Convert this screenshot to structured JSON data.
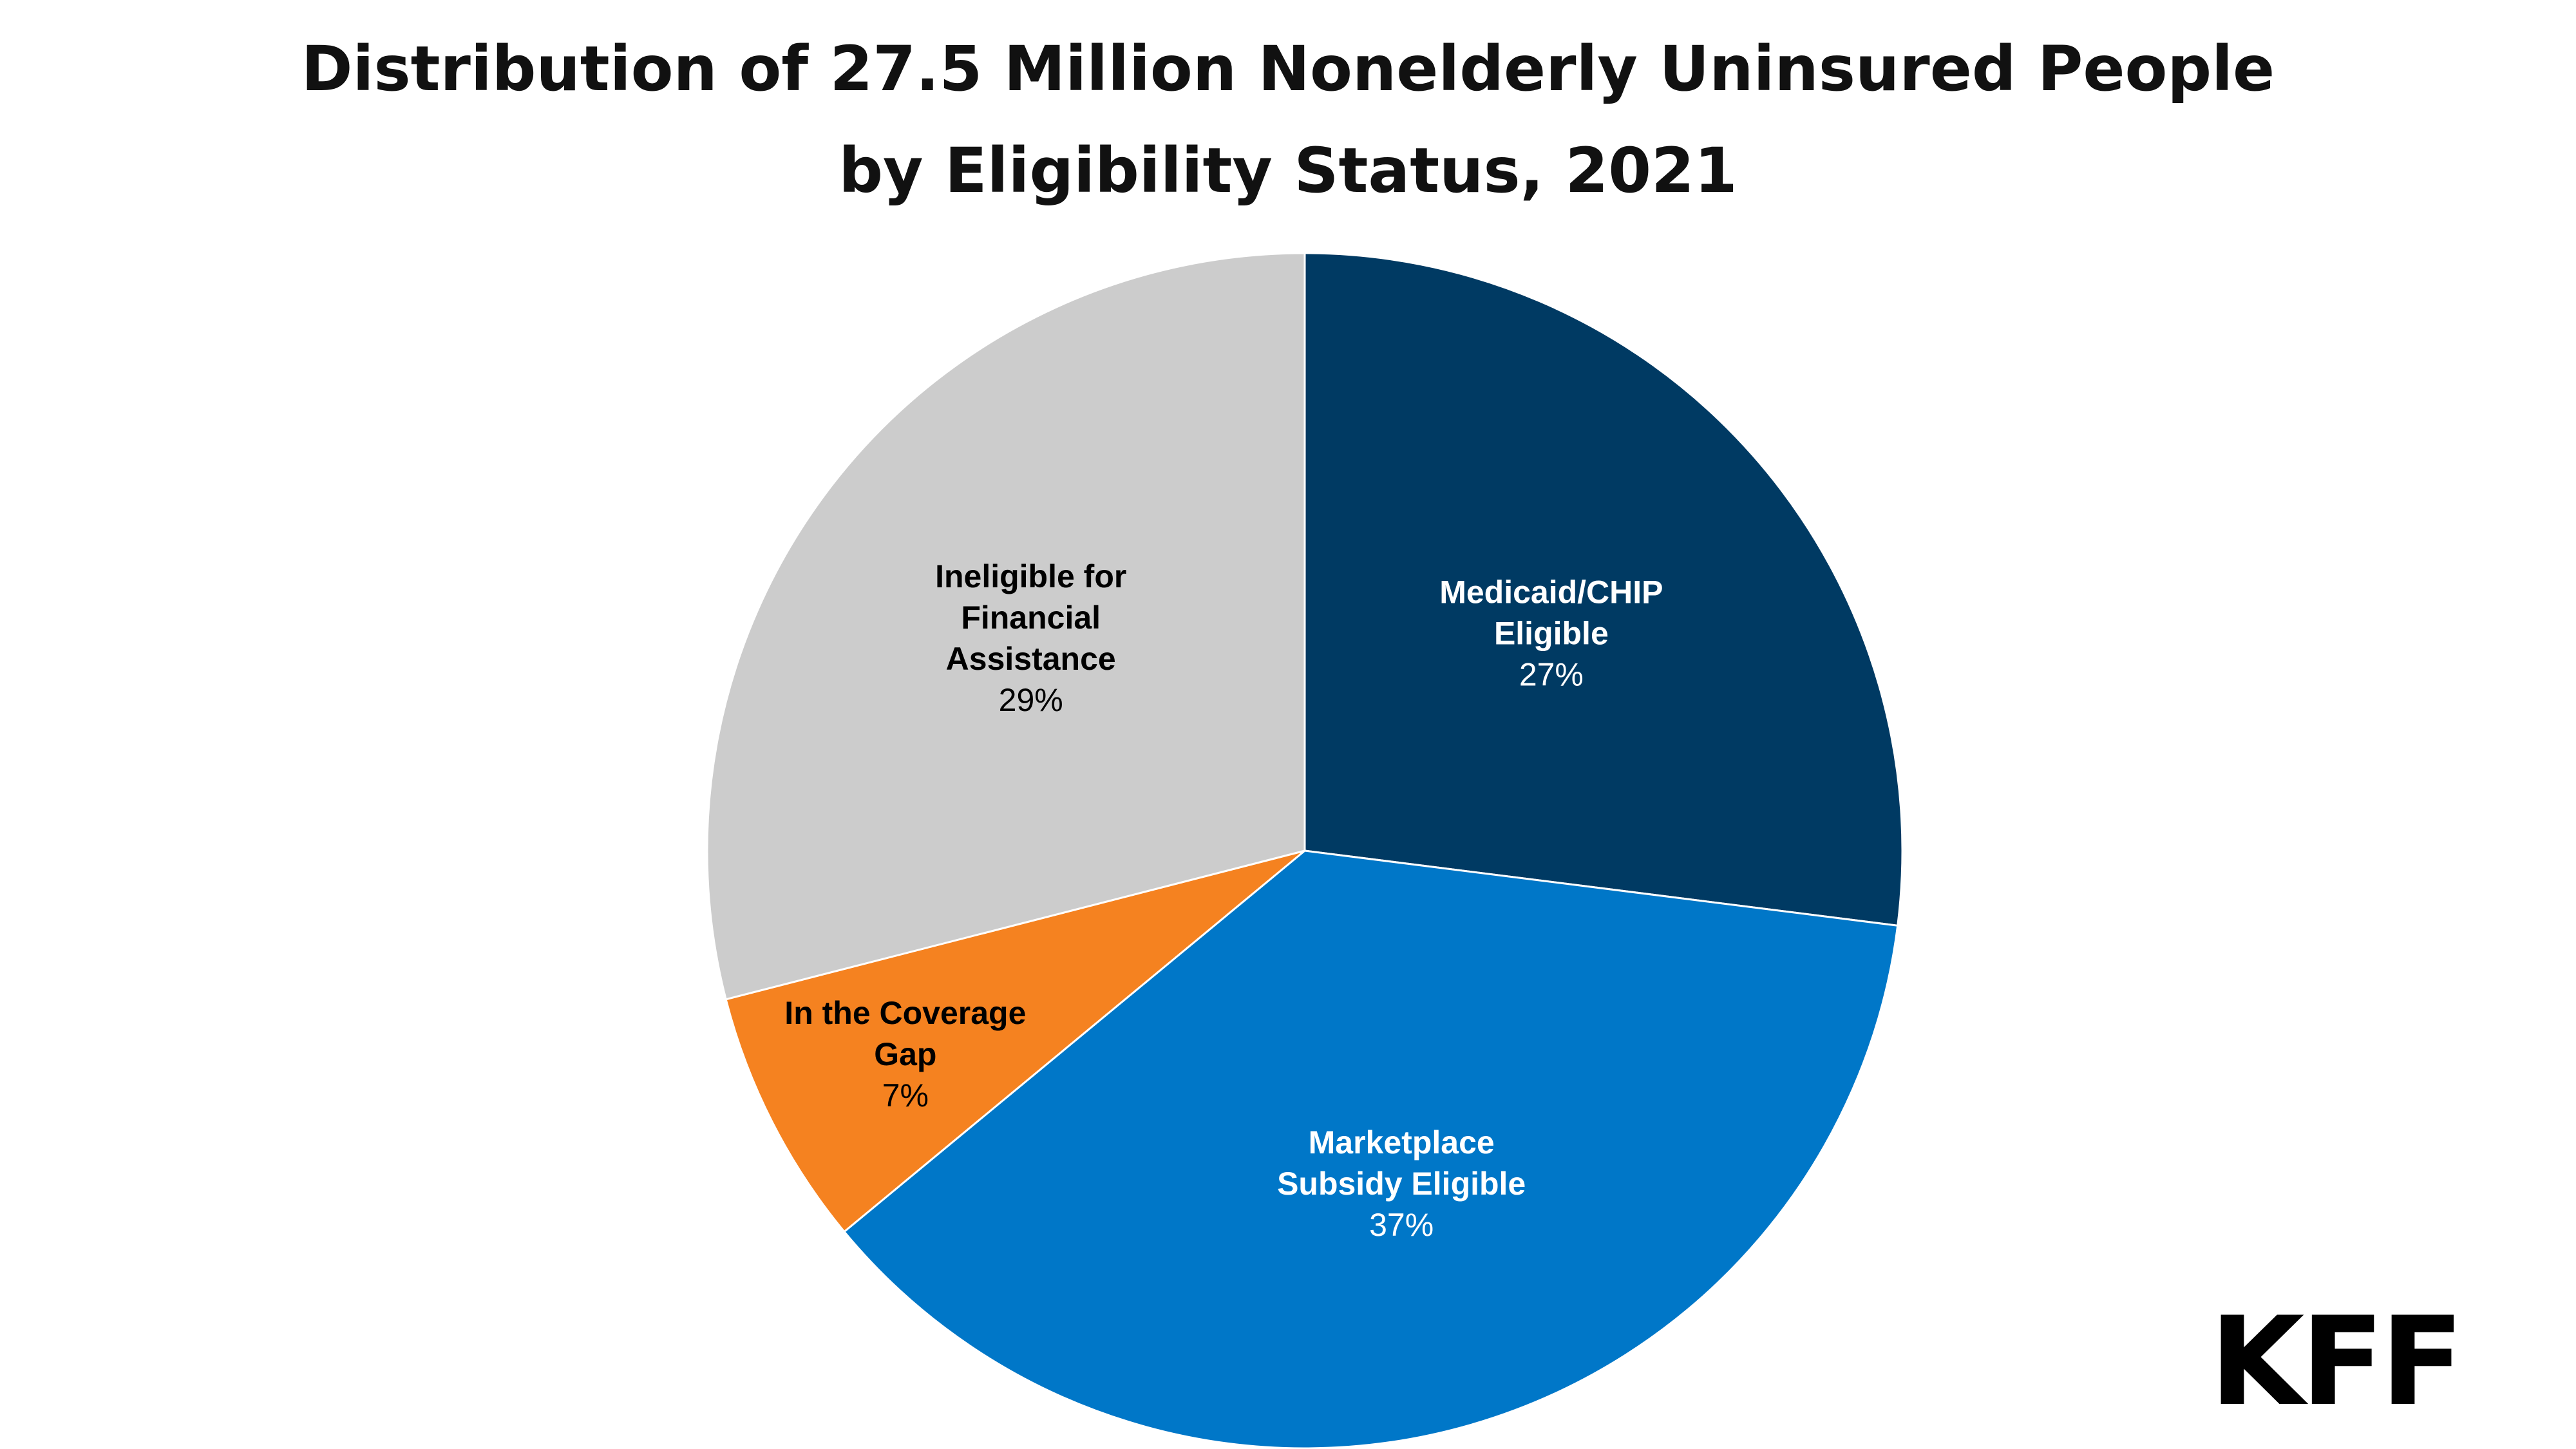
{
  "chart_data": {
    "type": "pie",
    "title": "Distribution of 27.5 Million Nonelderly Uninsured People by Eligibility Status, 2021",
    "title_lines": [
      "Distribution of 27.5 Million Nonelderly Uninsured People",
      "by Eligibility Status, 2021"
    ],
    "start": "12 o'clock, clockwise",
    "slices": [
      {
        "label_lines": [
          "Medicaid/CHIP",
          "Eligible"
        ],
        "value": 27,
        "value_label": "27%",
        "color": "#003a63",
        "text_color": "#ffffff"
      },
      {
        "label_lines": [
          "Marketplace",
          "Subsidy Eligible"
        ],
        "value": 37,
        "value_label": "37%",
        "color": "#0077c8",
        "text_color": "#ffffff"
      },
      {
        "label_lines": [
          "In the Coverage",
          "Gap"
        ],
        "value": 7,
        "value_label": "7%",
        "color": "#f58220",
        "text_color": "#000000"
      },
      {
        "label_lines": [
          "Ineligible for",
          "Financial",
          "Assistance"
        ],
        "value": 29,
        "value_label": "29%",
        "color": "#cccccc",
        "text_color": "#000000"
      }
    ]
  },
  "logo": "KFF"
}
